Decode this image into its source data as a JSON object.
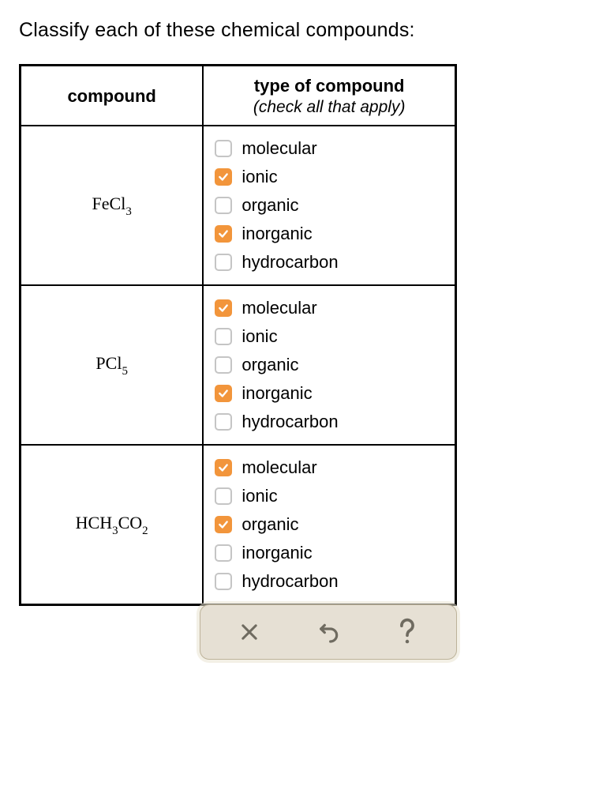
{
  "question": "Classify each of these chemical compounds:",
  "headers": {
    "compound": "compound",
    "type_title": "type of compound",
    "type_sub": "(check all that apply)"
  },
  "option_labels": {
    "molecular": "molecular",
    "ionic": "ionic",
    "organic": "organic",
    "inorganic": "inorganic",
    "hydrocarbon": "hydrocarbon"
  },
  "rows": [
    {
      "formula_parts": [
        {
          "t": "FeCl"
        },
        {
          "t": "3",
          "sub": true
        }
      ],
      "checks": {
        "molecular": false,
        "ionic": true,
        "organic": false,
        "inorganic": true,
        "hydrocarbon": false
      }
    },
    {
      "formula_parts": [
        {
          "t": "PCl"
        },
        {
          "t": "5",
          "sub": true
        }
      ],
      "checks": {
        "molecular": true,
        "ionic": false,
        "organic": false,
        "inorganic": true,
        "hydrocarbon": false
      }
    },
    {
      "formula_parts": [
        {
          "t": "HCH"
        },
        {
          "t": "3",
          "sub": true
        },
        {
          "t": "CO"
        },
        {
          "t": "2",
          "sub": true
        }
      ],
      "checks": {
        "molecular": true,
        "ionic": false,
        "organic": true,
        "inorganic": false,
        "hydrocarbon": false
      }
    }
  ],
  "colors": {
    "checkbox_checked_bg": "#f2953b",
    "checkbox_check_fg": "#ffffff",
    "checkbox_border": "#c5c5c5",
    "toolbar_bg": "#e6e0d4",
    "toolbar_border": "#bdb39a",
    "toolbar_icon": "#6f6b60"
  },
  "toolbar": {
    "clear": "clear",
    "undo": "undo",
    "help": "help"
  }
}
